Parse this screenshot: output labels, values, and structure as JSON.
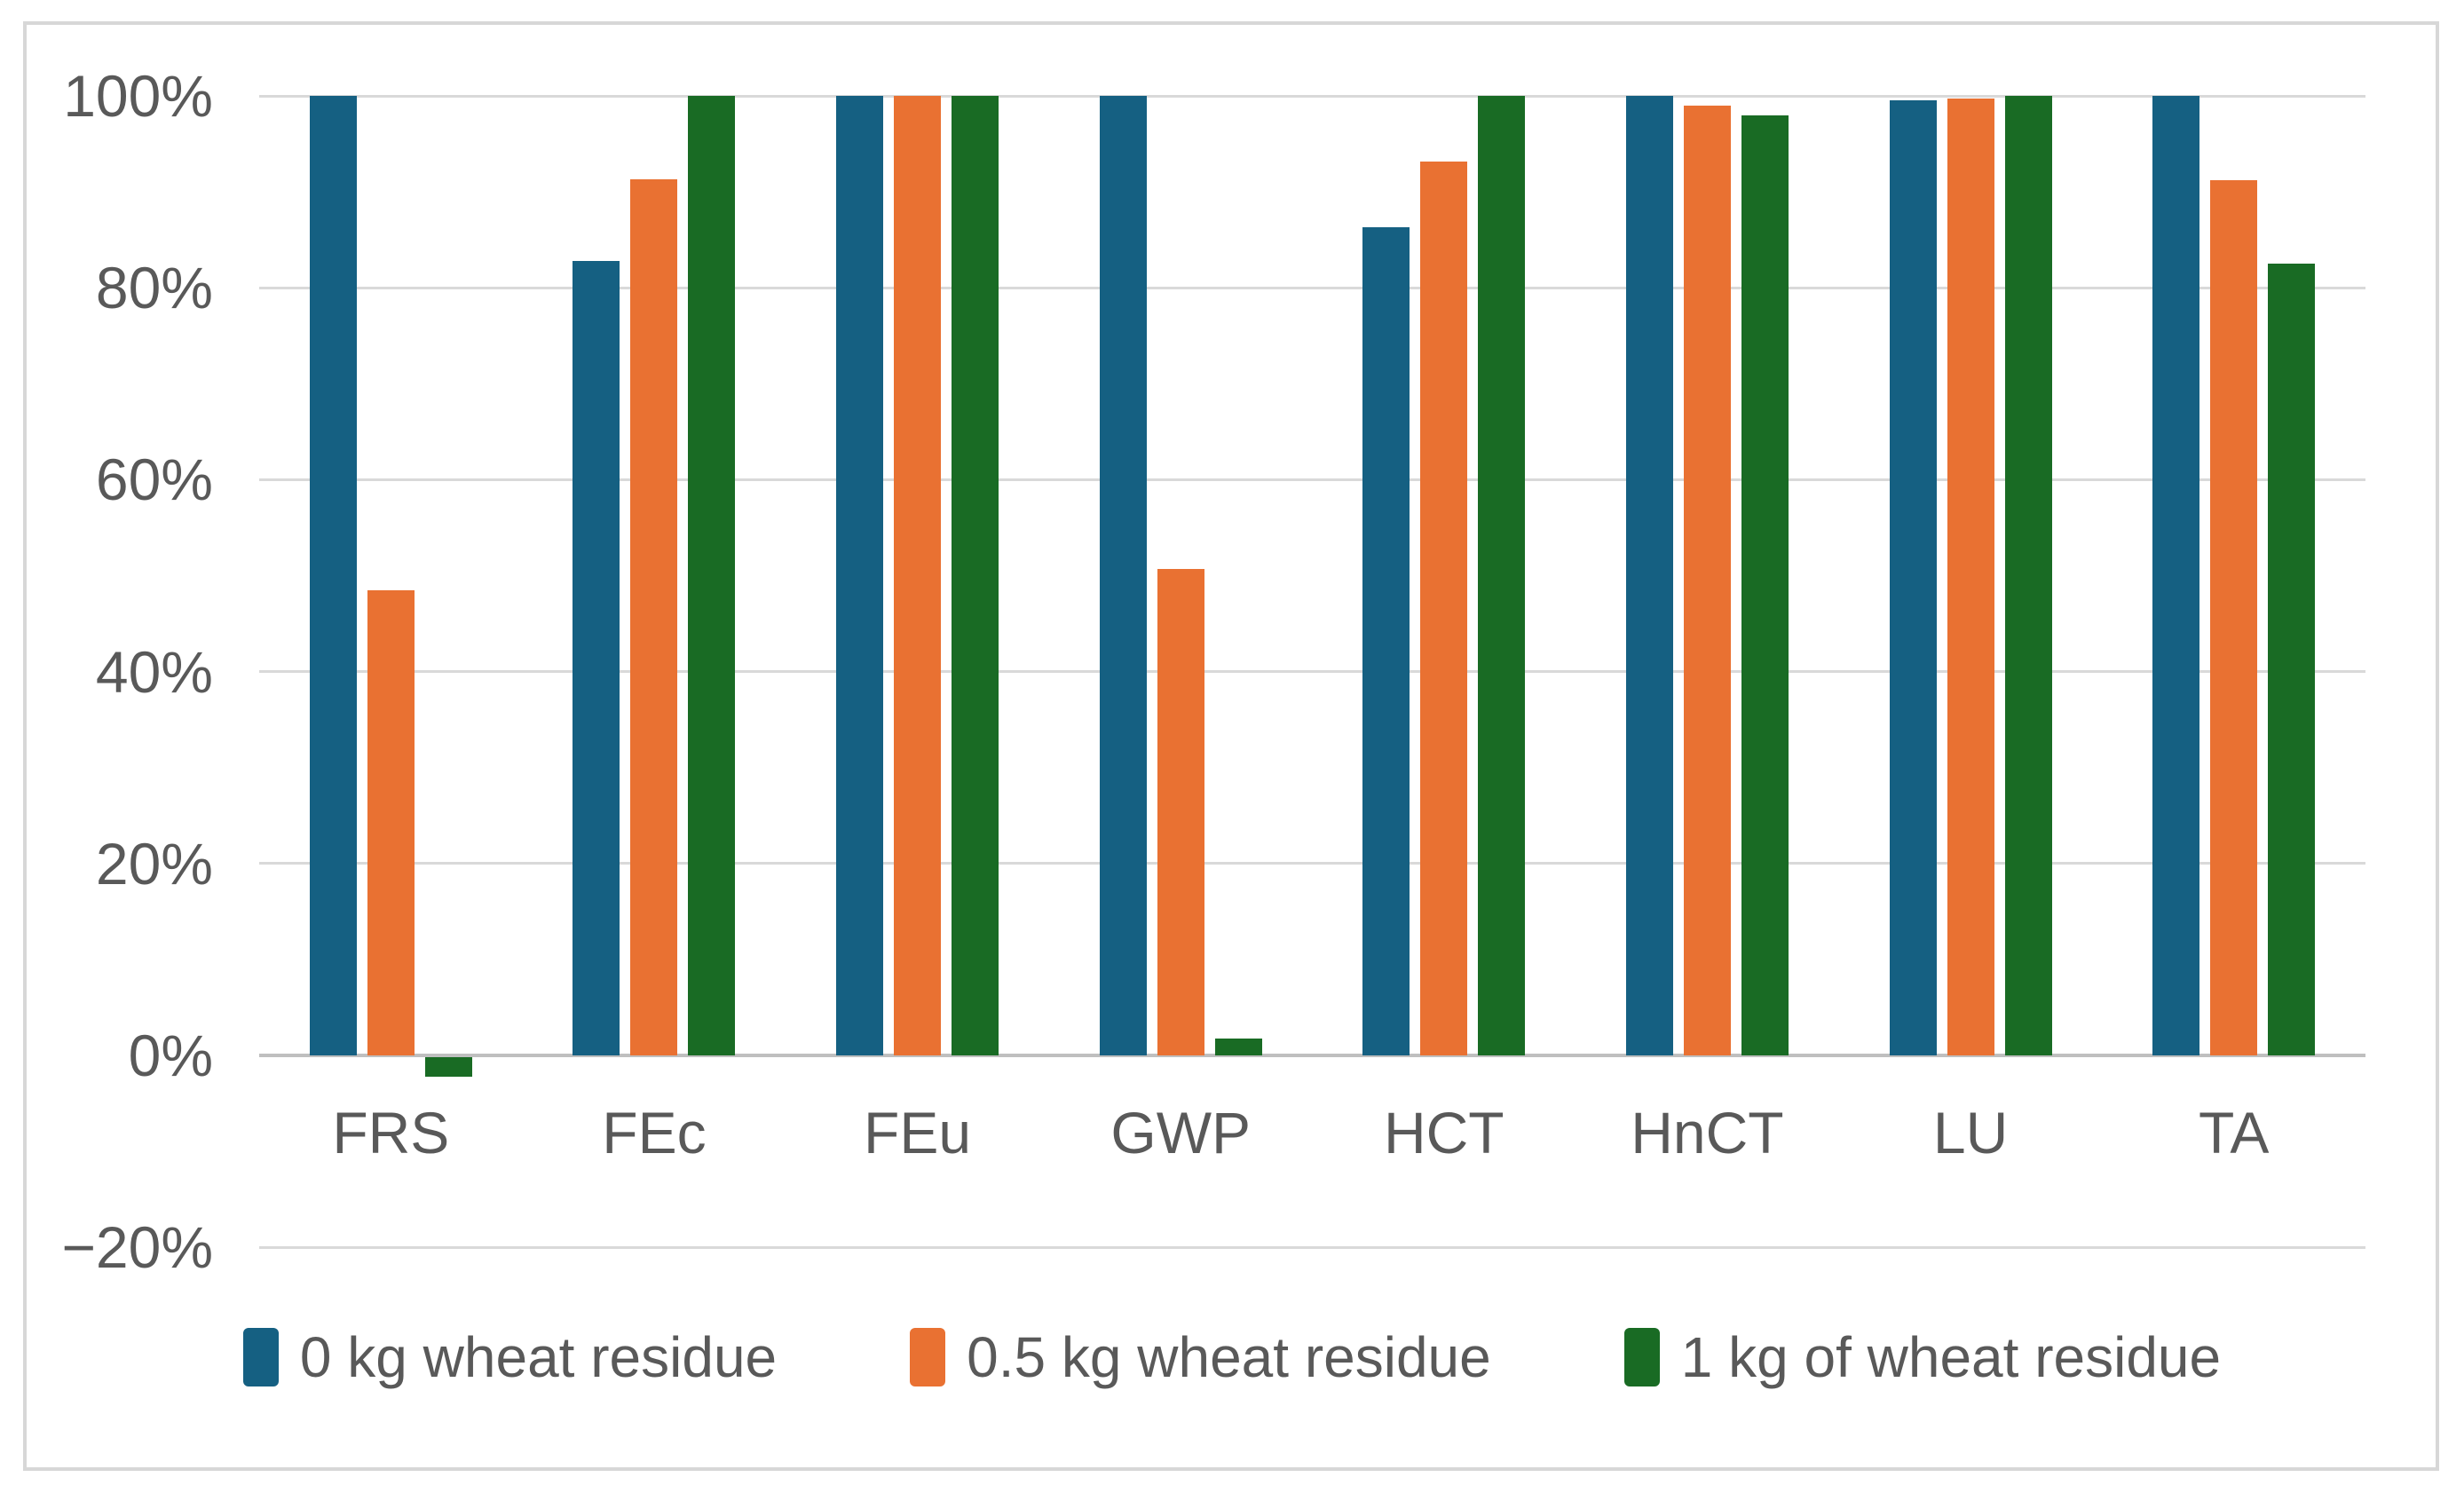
{
  "chart_data": {
    "type": "bar",
    "title": "",
    "categories": [
      "FRS",
      "FEc",
      "FEu",
      "GWP",
      "HCT",
      "HnCT",
      "LU",
      "TA"
    ],
    "series": [
      {
        "name": "0 kg wheat residue",
        "color": "#156082",
        "values": [
          100,
          82.8,
          100,
          100,
          86.3,
          100,
          99.5,
          100
        ]
      },
      {
        "name": "0.5 kg wheat residue",
        "color": "#E97132",
        "values": [
          48.5,
          91.3,
          100,
          50.7,
          93.2,
          99,
          99.7,
          91.2
        ]
      },
      {
        "name": "1 kg of wheat residue",
        "color": "#196B24",
        "values": [
          -2,
          100,
          100,
          1.8,
          100,
          98,
          100,
          82.5
        ]
      }
    ],
    "y_axis": {
      "unit": "%",
      "min": -20,
      "max": 100,
      "ticks": [
        "100%",
        "80%",
        "60%",
        "40%",
        "20%",
        "0%",
        "−20%"
      ],
      "tick_values": [
        100,
        80,
        60,
        40,
        20,
        0,
        -20
      ]
    },
    "grid": true,
    "legend_position": "bottom",
    "colors": {
      "background": "#FFFFFF",
      "border": "#D7D7D7",
      "gridline": "#D9D9D9",
      "axis_line": "#BFBFBF",
      "text": "#595959"
    }
  }
}
